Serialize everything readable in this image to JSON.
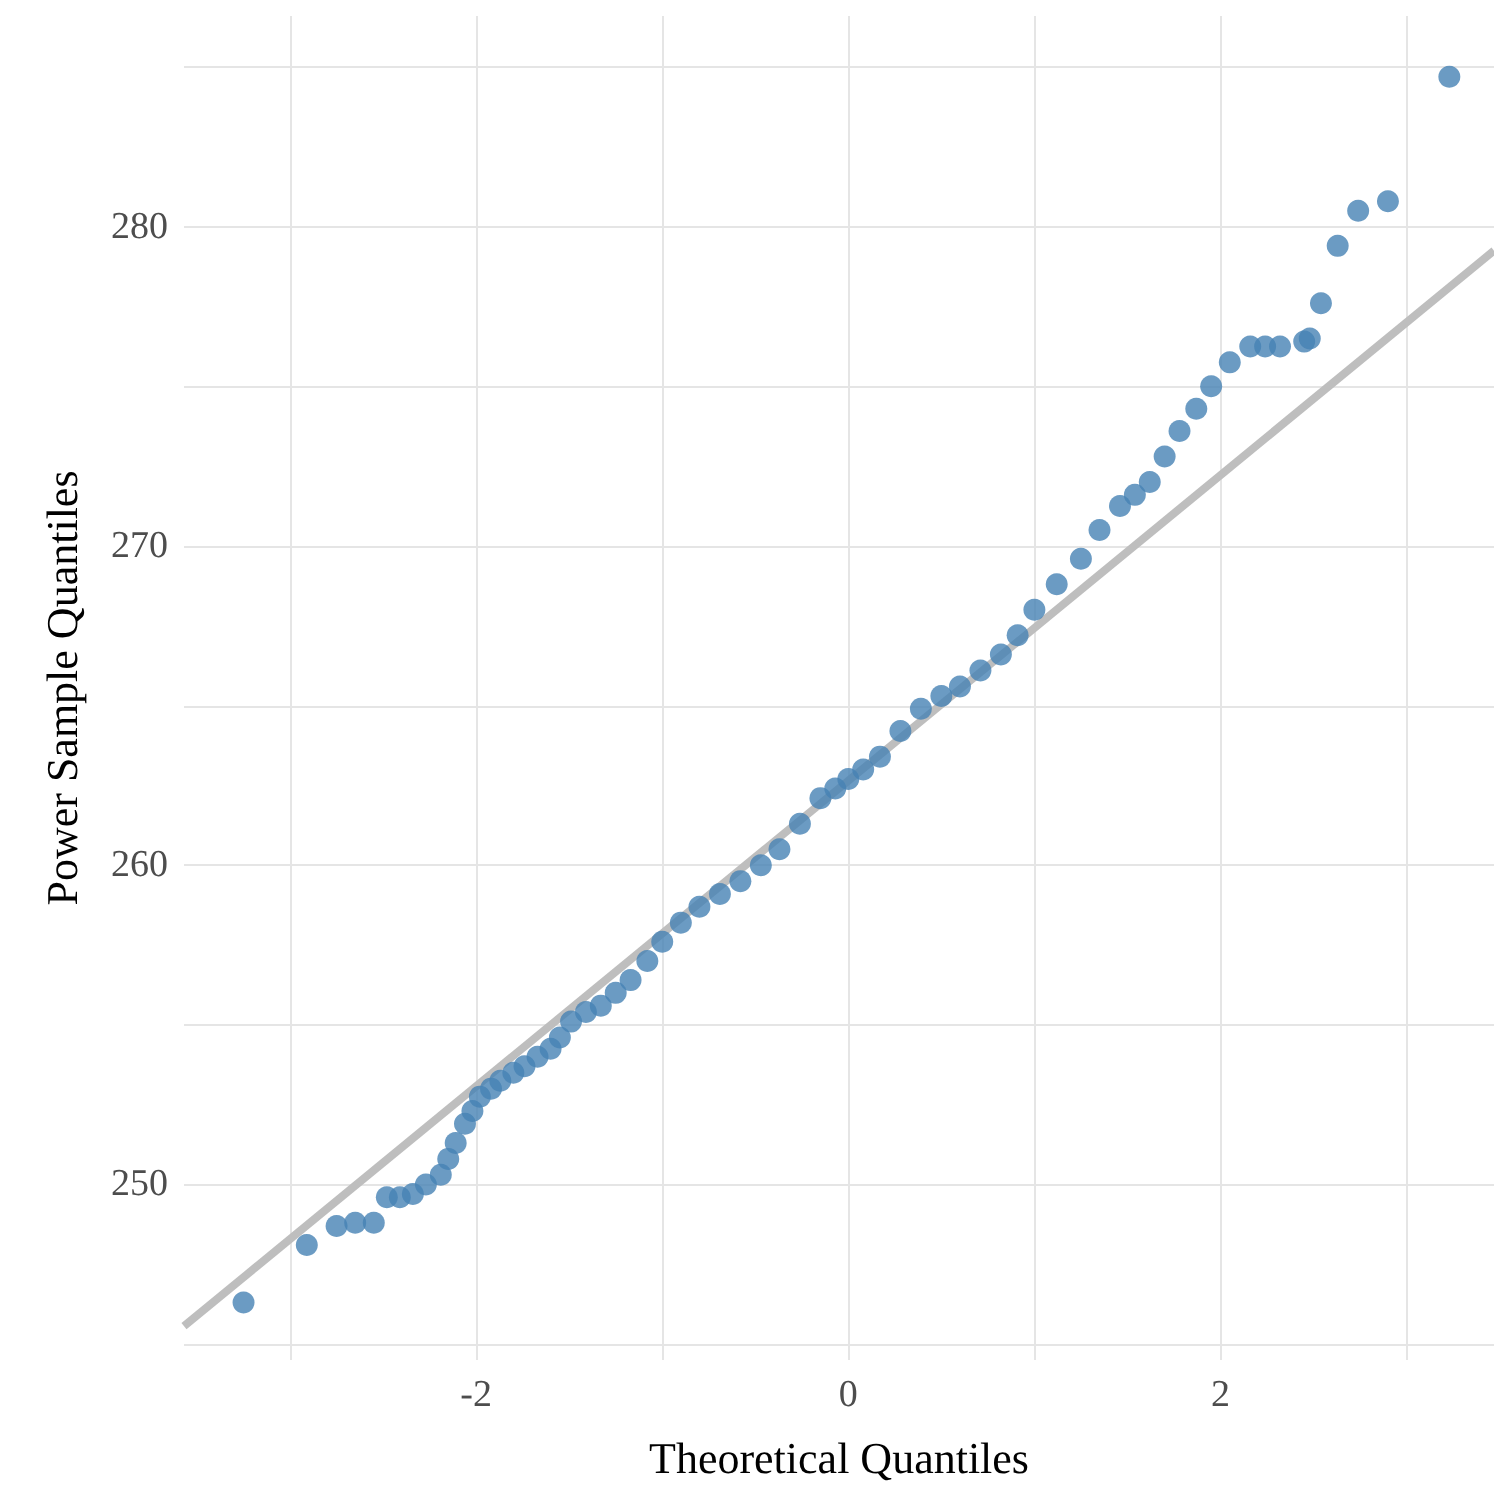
{
  "chart_data": {
    "type": "scatter",
    "xlabel": "Theoretical Quantiles",
    "ylabel": "Power Sample Quantiles",
    "xlim": [
      -3.57,
      3.47
    ],
    "ylim": [
      244.5,
      286.6
    ],
    "xticks": [
      {
        "value": -3,
        "label": null
      },
      -2,
      {
        "value": -1,
        "label": null
      },
      0,
      {
        "value": 1,
        "label": null
      },
      2,
      {
        "value": 3,
        "label": null
      }
    ],
    "yticks": [
      {
        "value": 245,
        "label": null
      },
      250,
      {
        "value": 255,
        "label": null
      },
      260,
      {
        "value": 265,
        "label": null
      },
      270,
      {
        "value": 275,
        "label": null
      },
      280,
      {
        "value": 285,
        "label": null
      }
    ],
    "grid": true,
    "marker": "circle",
    "series": [
      {
        "type": "line",
        "color": "#bebebe",
        "x": [
          -3.57,
          3.47
        ],
        "values": [
          245.56,
          279.25
        ],
        "marker": "none"
      },
      {
        "color": "#4682b4",
        "x": [
          -3.25,
          -2.91,
          -2.75,
          -2.65,
          -2.55,
          -2.48,
          -2.41,
          -2.34,
          -2.27,
          -2.19,
          -2.15,
          -2.11,
          -2.06,
          -2.02,
          -1.98,
          -1.92,
          -1.87,
          -1.8,
          -1.74,
          -1.67,
          -1.6,
          -1.55,
          -1.49,
          -1.41,
          -1.33,
          -1.25,
          -1.17,
          -1.08,
          -1.0,
          -0.9,
          -0.8,
          -0.69,
          -0.58,
          -0.47,
          -0.37,
          -0.26,
          -0.15,
          -0.07,
          0,
          0.08,
          0.17,
          0.28,
          0.39,
          0.5,
          0.6,
          0.71,
          0.82,
          0.91,
          1.0,
          1.12,
          1.25,
          1.35,
          1.46,
          1.54,
          1.62,
          1.7,
          1.78,
          1.87,
          1.95,
          2.05,
          2.16,
          2.24,
          2.32,
          2.45,
          2.48,
          2.54,
          2.63,
          2.74,
          2.9,
          3.23
        ],
        "values": [
          246.3,
          248.1,
          248.7,
          248.8,
          248.8,
          249.6,
          249.6,
          249.7,
          250.0,
          250.3,
          250.8,
          251.3,
          251.9,
          252.3,
          252.75,
          253.0,
          253.25,
          253.5,
          253.7,
          254.0,
          254.25,
          254.6,
          255.1,
          255.4,
          255.6,
          256.0,
          256.4,
          257.0,
          257.6,
          258.2,
          258.7,
          259.1,
          259.5,
          260.0,
          260.5,
          261.3,
          262.1,
          262.4,
          262.7,
          263.0,
          263.4,
          264.2,
          264.9,
          265.3,
          265.6,
          266.1,
          266.6,
          267.2,
          268.0,
          268.8,
          269.6,
          270.5,
          271.25,
          271.6,
          272.0,
          272.8,
          273.6,
          274.3,
          275.0,
          275.75,
          276.25,
          276.25,
          276.25,
          276.4,
          276.5,
          277.6,
          279.4,
          280.5,
          280.8,
          284.7
        ]
      }
    ]
  }
}
